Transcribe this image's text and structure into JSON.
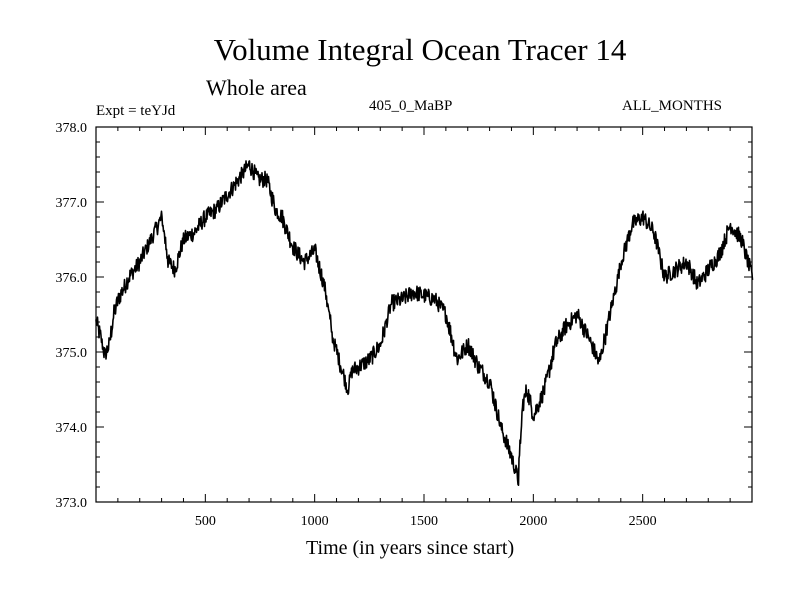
{
  "chart_data": {
    "type": "line",
    "title": "Volume Integral Ocean Tracer 14",
    "subtitle": "Whole area",
    "experiment_label": "Expt = teYJd",
    "period_label": "405_0_MaBP",
    "months_label": "ALL_MONTHS",
    "xlabel": "Time (in years since start)",
    "ylabel": "",
    "xlim": [
      0,
      3000
    ],
    "ylim": [
      373.0,
      378.0
    ],
    "x_ticks": [
      500,
      1000,
      1500,
      2000,
      2500
    ],
    "x_tick_labels": [
      "500",
      "1000",
      "1500",
      "2000",
      "2500"
    ],
    "y_ticks": [
      373.0,
      374.0,
      375.0,
      376.0,
      377.0,
      378.0
    ],
    "y_tick_labels": [
      "373.0",
      "374.0",
      "375.0",
      "376.0",
      "377.0",
      "378.0"
    ],
    "series": [
      {
        "name": "Volume Integral Ocean Tracer 14",
        "color": "#000000",
        "x": [
          0,
          20,
          40,
          60,
          80,
          100,
          150,
          200,
          250,
          300,
          330,
          360,
          400,
          450,
          500,
          550,
          600,
          650,
          700,
          740,
          780,
          820,
          850,
          900,
          950,
          1000,
          1050,
          1080,
          1100,
          1130,
          1150,
          1170,
          1200,
          1250,
          1300,
          1350,
          1400,
          1450,
          1500,
          1550,
          1600,
          1650,
          1700,
          1750,
          1800,
          1850,
          1900,
          1930,
          1950,
          1970,
          2000,
          2050,
          2100,
          2150,
          2200,
          2250,
          2300,
          2350,
          2400,
          2450,
          2500,
          2550,
          2600,
          2650,
          2700,
          2750,
          2800,
          2850,
          2900,
          2950,
          3000
        ],
        "y": [
          375.4,
          375.2,
          374.95,
          375.1,
          375.5,
          375.7,
          376.0,
          376.2,
          376.5,
          376.8,
          376.2,
          376.1,
          376.5,
          376.6,
          376.8,
          376.9,
          377.1,
          377.3,
          377.5,
          377.3,
          377.3,
          376.9,
          376.8,
          376.4,
          376.2,
          376.35,
          375.8,
          375.2,
          375.0,
          374.7,
          374.5,
          374.75,
          374.8,
          374.9,
          375.1,
          375.65,
          375.7,
          375.8,
          375.75,
          375.7,
          375.5,
          374.9,
          375.1,
          374.8,
          374.6,
          374.0,
          373.6,
          373.3,
          374.3,
          374.5,
          374.15,
          374.5,
          375.1,
          375.35,
          375.5,
          375.2,
          374.85,
          375.5,
          376.2,
          376.7,
          376.8,
          376.6,
          376.0,
          376.1,
          376.2,
          375.9,
          376.1,
          376.3,
          376.7,
          376.5,
          376.0
        ]
      }
    ]
  }
}
